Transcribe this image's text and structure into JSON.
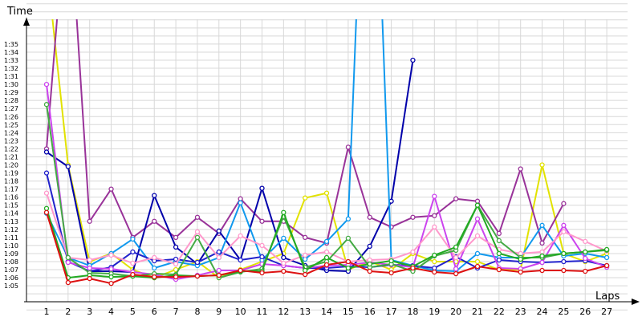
{
  "chart_data": {
    "type": "line",
    "ylabel": "Time",
    "xlabel": "Laps",
    "grid": true,
    "x": [
      1,
      2,
      3,
      4,
      5,
      6,
      7,
      8,
      9,
      10,
      11,
      12,
      13,
      14,
      15,
      16,
      17,
      18,
      19,
      20,
      21,
      22,
      23,
      24,
      25,
      26,
      27
    ],
    "y_range_seconds": [
      62,
      101
    ],
    "y_ticks": [
      "1:05",
      "1:06",
      "1:07",
      "1:08",
      "1:09",
      "1:10",
      "1:11",
      "1:12",
      "1:13",
      "1:14",
      "1:15",
      "1:16",
      "1:17",
      "1:18",
      "1:19",
      "1:20",
      "1:21",
      "1:22",
      "1:23",
      "1:24",
      "1:25",
      "1:26",
      "1:27",
      "1:28",
      "1:29",
      "1:30",
      "1:31",
      "1:32",
      "1:33",
      "1:34",
      "1:35"
    ],
    "series": [
      {
        "color": "#e2e200",
        "values": [
          105,
          80,
          68,
          69,
          67,
          66,
          67,
          68,
          66,
          67,
          68,
          69,
          75.9,
          76.5,
          67,
          68,
          67,
          69,
          68,
          68,
          68,
          67,
          67,
          80,
          69,
          68,
          69
        ]
      },
      {
        "color": "#993399",
        "values": [
          82,
          115,
          73,
          77,
          71,
          73,
          71,
          73.5,
          71.5,
          75.8,
          73,
          73,
          71,
          70.3,
          82.2,
          73.5,
          72.3,
          73.5,
          73.7,
          75.8,
          75.5,
          71.5,
          79.5,
          70.3,
          75.2,
          null,
          null
        ]
      },
      {
        "color": "#0000aa",
        "values": [
          81.6,
          79.8,
          66.8,
          66.8,
          66.7,
          76.2,
          69.8,
          67.7,
          71.8,
          68.2,
          77.1,
          68.5,
          67.5,
          66.9,
          66.8,
          69.9,
          75.5,
          93.0,
          null,
          null,
          null,
          null,
          null,
          null,
          null,
          null,
          null
        ]
      },
      {
        "color": "#1199ee",
        "values": [
          74,
          68.5,
          67.5,
          69,
          70.8,
          67.2,
          68,
          67.5,
          68.5,
          75.3,
          68.2,
          70.9,
          68.3,
          70.5,
          73.3,
          140,
          68.2,
          67.5,
          66.9,
          66.8,
          69,
          68.5,
          68.5,
          72.5,
          68.7,
          69,
          68.5
        ]
      },
      {
        "color": "#2222cc",
        "values": [
          79,
          68,
          66.8,
          67.3,
          69.2,
          68.1,
          68.3,
          67.9,
          69.2,
          68.2,
          68.6,
          67.5,
          67.2,
          67.2,
          67.4,
          67.3,
          67.6,
          67.5,
          67.2,
          68.6,
          67.2,
          68.2,
          68,
          67.9,
          68,
          68.1,
          67.5
        ]
      },
      {
        "color": "#cc44ee",
        "values": [
          90,
          67.9,
          67.2,
          67.1,
          66.7,
          66.4,
          65.8,
          66.3,
          66.9,
          66.9,
          67.7,
          67.5,
          67.2,
          67.5,
          67.6,
          67.9,
          67.6,
          67.3,
          76.1,
          67.1,
          73.3,
          67.2,
          67.1,
          67.9,
          72.5,
          68.4,
          67.3
        ]
      },
      {
        "color": "#ff99cc",
        "values": [
          76.5,
          68.5,
          68.2,
          68.8,
          67.8,
          68.5,
          67.7,
          71.7,
          68.5,
          71.2,
          70,
          67.8,
          68.8,
          69.2,
          68,
          68.2,
          68.3,
          69.2,
          72.3,
          68.5,
          71.2,
          69.5,
          69,
          69.2,
          71.7,
          70.5,
          69.3
        ]
      },
      {
        "color": "#44aa44",
        "values": [
          87.5,
          68.5,
          66.6,
          66.5,
          66.2,
          66.5,
          66.4,
          71,
          66,
          66.7,
          67.1,
          73.6,
          67.3,
          68,
          70.9,
          67.3,
          67.7,
          66.8,
          68.7,
          69.4,
          75,
          70.6,
          68.5,
          68.5,
          69,
          69.2,
          69.4
        ]
      },
      {
        "color": "#22aa22",
        "values": [
          74.6,
          66,
          66.3,
          66.1,
          66.2,
          66.0,
          66.3,
          66.2,
          66.3,
          66.8,
          66.8,
          74.1,
          66.9,
          68.5,
          67.2,
          67.7,
          68.1,
          67.4,
          68.8,
          69.8,
          75,
          69,
          68.3,
          68.7,
          69,
          69.2,
          69.5
        ]
      },
      {
        "color": "#dd1111",
        "values": [
          74.1,
          65.4,
          65.9,
          65.3,
          66.4,
          66.1,
          66.1,
          66.2,
          66.3,
          66.9,
          66.6,
          66.8,
          66.4,
          67.6,
          68.0,
          66.8,
          66.6,
          67.2,
          66.7,
          66.5,
          67.4,
          67.0,
          66.7,
          66.9,
          66.9,
          66.8,
          67.5
        ]
      }
    ]
  }
}
